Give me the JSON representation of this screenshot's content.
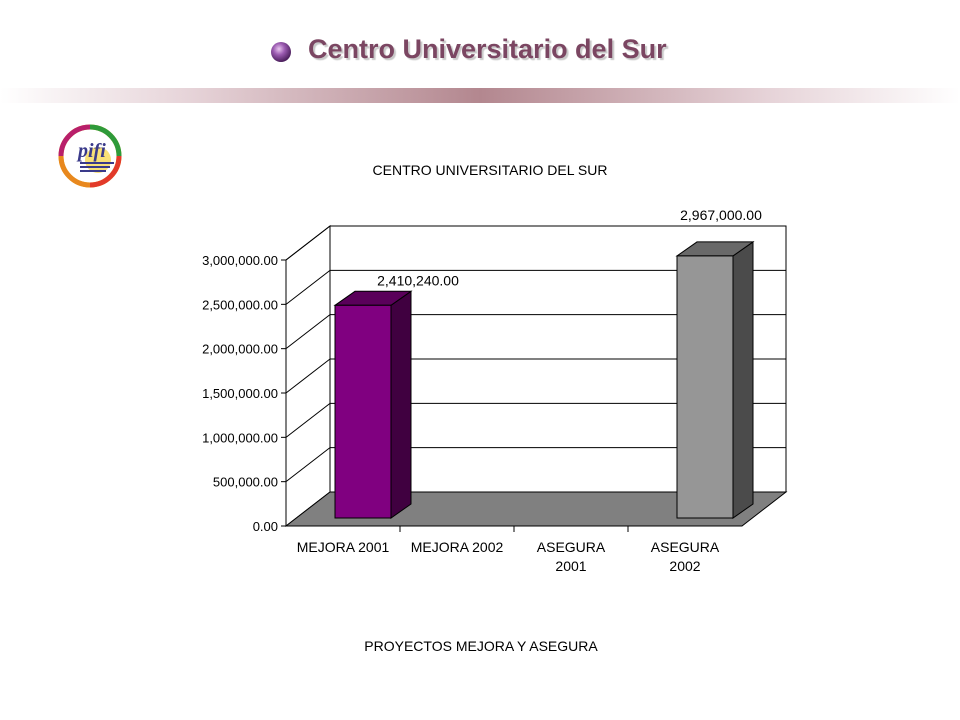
{
  "header": {
    "title": "Centro Universitario del Sur",
    "bullet_icon": "purple-sphere-icon",
    "logo_icon": "pifi-logo-icon",
    "logo_text": "pifi"
  },
  "colors": {
    "title": "#7b4662",
    "bar_purple": "#800080",
    "bar_gray": "#969696",
    "floor": "#808080"
  },
  "chart_data": {
    "type": "bar",
    "style": "3d-column",
    "title": "CENTRO UNIVERSITARIO DEL SUR",
    "xlabel": "PROYECTOS MEJORA Y ASEGURA",
    "ylabel": "",
    "categories": [
      "MEJORA 2001",
      "MEJORA 2002",
      "ASEGURA 2001",
      "ASEGURA 2002"
    ],
    "values": [
      2410240,
      null,
      null,
      2967000
    ],
    "data_labels": [
      "2,410,240.00",
      "",
      "",
      "2,967,000.00"
    ],
    "ylim": [
      0,
      3000000
    ],
    "yticks": [
      0,
      500000,
      1000000,
      1500000,
      2000000,
      2500000,
      3000000
    ],
    "ytick_labels": [
      "0.00",
      "500,000.00",
      "1,000,000.00",
      "1,500,000.00",
      "2,000,000.00",
      "2,500,000.00",
      "3,000,000.00"
    ],
    "bar_colors": [
      "#800080",
      "#800080",
      "#969696",
      "#969696"
    ],
    "grid": true,
    "legend": "none"
  }
}
